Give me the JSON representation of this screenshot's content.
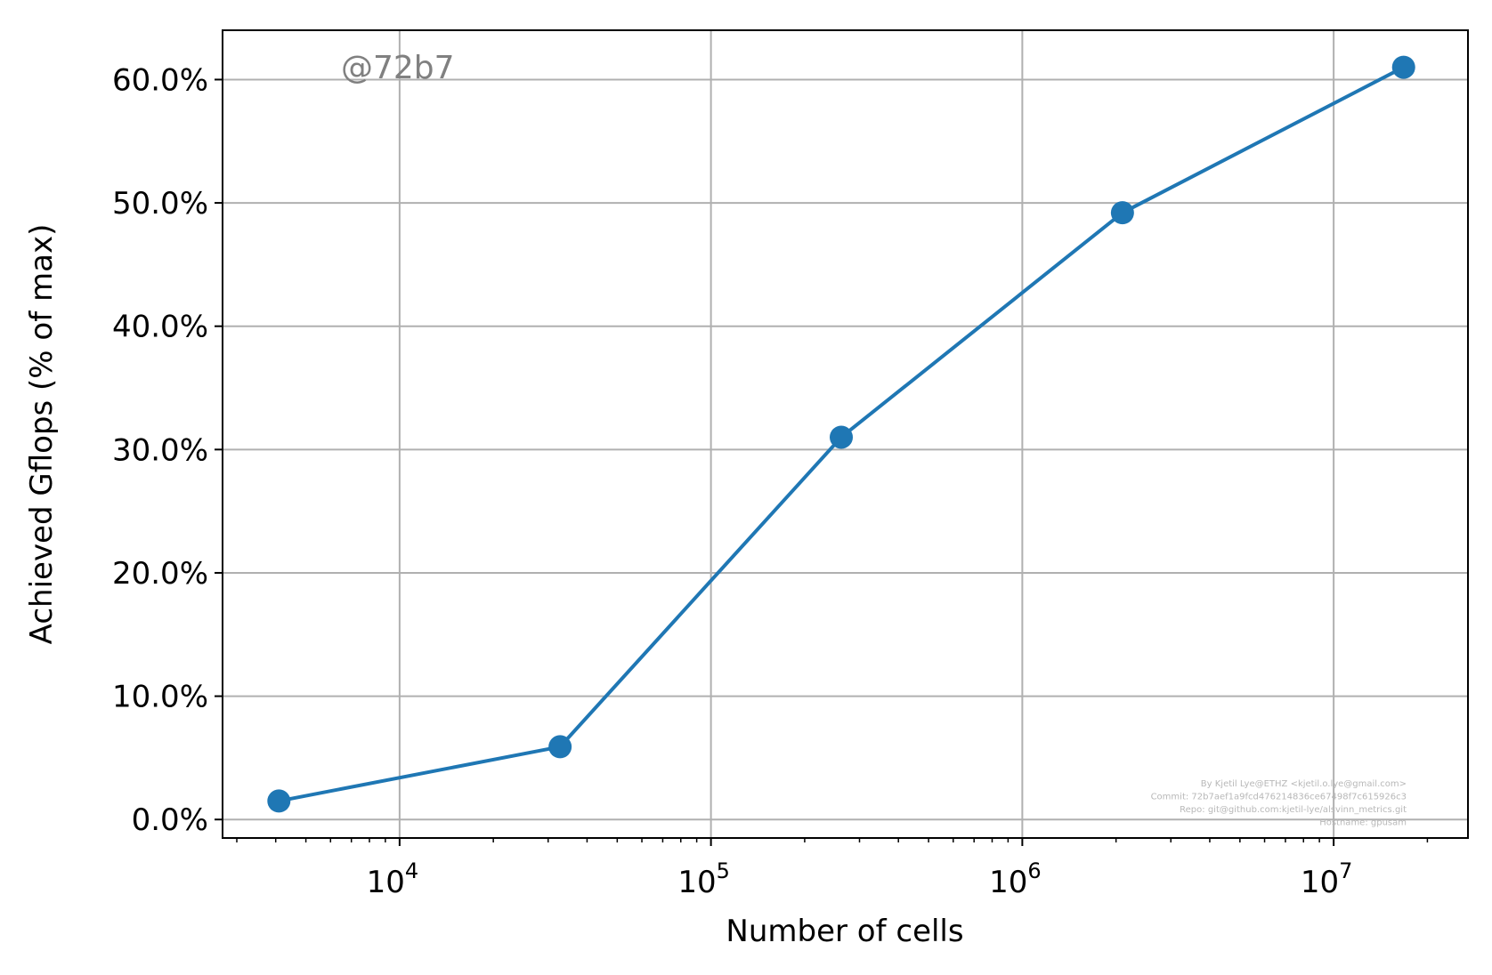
{
  "chart_data": {
    "type": "line",
    "x_scale": "log",
    "xlabel": "Number of cells",
    "ylabel": "Achieved Gflops (% of max)",
    "xlim": [
      2700,
      27000000
    ],
    "ylim": [
      -1.5,
      64
    ],
    "x_tick_labels": [
      {
        "value": 10000,
        "base": "10",
        "exp": "4"
      },
      {
        "value": 100000,
        "base": "10",
        "exp": "5"
      },
      {
        "value": 1000000,
        "base": "10",
        "exp": "6"
      },
      {
        "value": 10000000,
        "base": "10",
        "exp": "7"
      }
    ],
    "y_ticks": [
      0,
      10,
      20,
      30,
      40,
      50,
      60
    ],
    "y_tick_labels": [
      "0.0%",
      "10.0%",
      "20.0%",
      "30.0%",
      "40.0%",
      "50.0%",
      "60.0%"
    ],
    "grid": true,
    "series": [
      {
        "x": [
          4096,
          32768,
          262144,
          2097152,
          16777216
        ],
        "y": [
          1.5,
          5.9,
          31.0,
          49.2,
          61.0
        ],
        "color": "#1f77b4",
        "marker": "circle"
      }
    ],
    "annotations": {
      "watermark": "@72b7",
      "credits": [
        "By Kjetil Lye@ETHZ <kjetil.o.lye@gmail.com>",
        "Commit: 72b7aef1a9fcd476214836ce67498f7c615926c3",
        "Repo: git@github.com:kjetil-lye/alsvinn_metrics.git",
        "Hostname: gpusam"
      ]
    }
  }
}
